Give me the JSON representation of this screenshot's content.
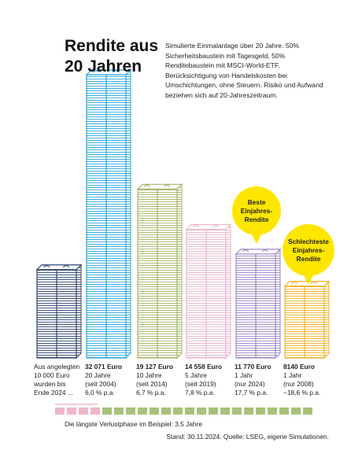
{
  "chart_data": {
    "type": "bar",
    "title": "Rendite aus 20 Jahren",
    "description": "Simulierte Einmalanlage über 20 Jahre. 50% Sicherheitsbaustein mit Tagesgeld, 50% Renditebaustein mit MSCI-World-ETF. Berücksichtigung von Handelskosten bei Umschichtungen, ohne Steuern. Risiko und Aufwand beziehen sich auf 20-Jahreszeitraum.",
    "intro": "Aus angelegten",
    "values": [
      10000,
      32071,
      19127,
      14558,
      11770,
      8140
    ],
    "value_labels": [
      "10 000 Euro",
      "32 071 Euro",
      "19 127 Euro",
      "14 558 Euro",
      "11 770 Euro",
      "8140 Euro"
    ],
    "details": [
      [
        "wurden bis",
        "Ende 2024 ..."
      ],
      [
        "20 Jahre",
        "(seit 2004)",
        "6,0 % p.a."
      ],
      [
        "10 Jahre",
        "(seit 2014)",
        "6,7 % p.a."
      ],
      [
        "5 Jahre",
        "(seit 2019)",
        "7,8 % p.a."
      ],
      [
        "1 Jahr",
        "(nur 2024)",
        "17,7 % p.a."
      ],
      [
        "1 Jahr",
        "(nur 2008)",
        "−18,6 % p.a."
      ]
    ],
    "colors": [
      "#2d4470",
      "#2aa7dc",
      "#a5b46a",
      "#e8b6cb",
      "#9c88c6",
      "#f0b42c"
    ],
    "annotations": [
      {
        "text": [
          "Beste",
          "Einjahres-",
          "Rendite"
        ]
      },
      {
        "text": [
          "Schlechteste",
          "Einjahres-",
          "Rendite"
        ]
      }
    ],
    "timeline_label": "Die längste Verlustphase im Beispiel: 3,5 Jahre",
    "source": "Stand: 30.11.2024. Quelle: LSEG, eigene Simulationen."
  }
}
